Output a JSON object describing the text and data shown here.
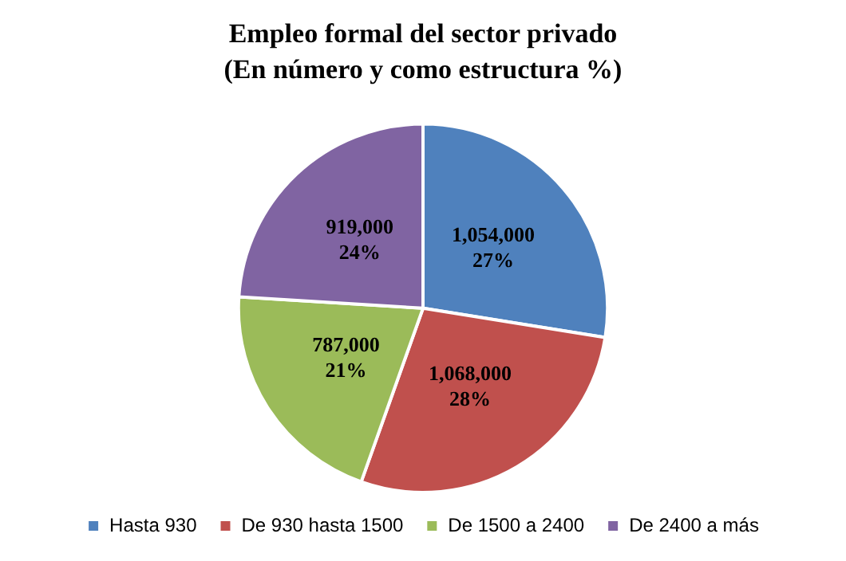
{
  "chart_data": {
    "type": "pie",
    "title": "Empleo formal del sector privado",
    "subtitle": "(En número y como estructura %)",
    "categories": [
      "Hasta 930",
      "De 930 hasta 1500",
      "De 1500 a 2400",
      "De 2400 a más"
    ],
    "values": [
      1054000,
      1068000,
      787000,
      919000
    ],
    "colors": [
      "#4f81bd",
      "#c0504d",
      "#9bbb59",
      "#8064a2"
    ],
    "value_labels": [
      "1,054,000\n27%",
      "1,068,000\n28%",
      "787,000\n21%",
      "919,000\n24%"
    ],
    "legend": "bottom"
  }
}
